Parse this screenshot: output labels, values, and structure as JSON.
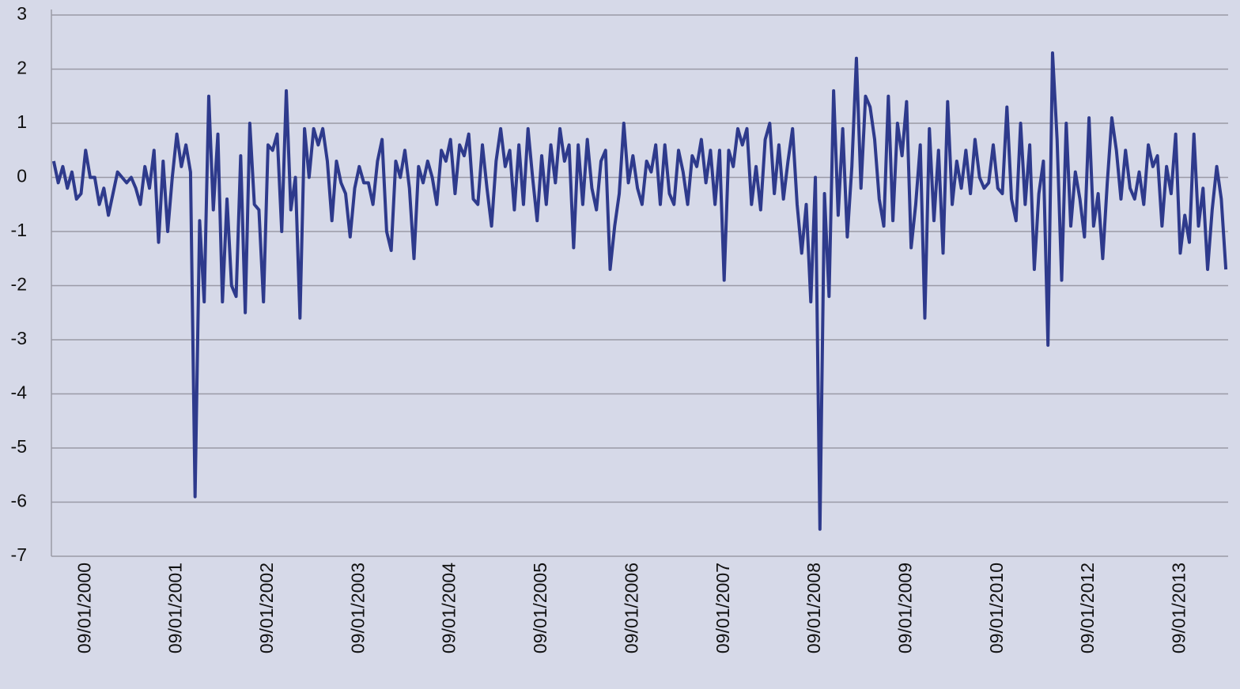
{
  "chart_data": {
    "type": "line",
    "categories": [
      null,
      null,
      null,
      null,
      null,
      null,
      null,
      "09/01/2000",
      null,
      null,
      null,
      null,
      null,
      null,
      null,
      null,
      null,
      null,
      null,
      null,
      null,
      null,
      null,
      null,
      null,
      null,
      null,
      "09/01/2001",
      null,
      null,
      null,
      null,
      null,
      null,
      null,
      null,
      null,
      null,
      null,
      null,
      null,
      null,
      null,
      null,
      null,
      null,
      null,
      "09/01/2002",
      null,
      null,
      null,
      null,
      null,
      null,
      null,
      null,
      null,
      null,
      null,
      null,
      null,
      null,
      null,
      null,
      null,
      null,
      null,
      "09/01/2003",
      null,
      null,
      null,
      null,
      null,
      null,
      null,
      null,
      null,
      null,
      null,
      null,
      null,
      null,
      null,
      null,
      null,
      null,
      null,
      "09/01/2004",
      null,
      null,
      null,
      null,
      null,
      null,
      null,
      null,
      null,
      null,
      null,
      null,
      null,
      null,
      null,
      null,
      null,
      null,
      null,
      "09/01/2005",
      null,
      null,
      null,
      null,
      null,
      null,
      null,
      null,
      null,
      null,
      null,
      null,
      null,
      null,
      null,
      null,
      null,
      null,
      null,
      "09/01/2006",
      null,
      null,
      null,
      null,
      null,
      null,
      null,
      null,
      null,
      null,
      null,
      null,
      null,
      null,
      null,
      null,
      null,
      null,
      null,
      "09/01/2007",
      null,
      null,
      null,
      null,
      null,
      null,
      null,
      null,
      null,
      null,
      null,
      null,
      null,
      null,
      null,
      null,
      null,
      null,
      null,
      "09/01/2008",
      null,
      null,
      null,
      null,
      null,
      null,
      null,
      null,
      null,
      null,
      null,
      null,
      null,
      null,
      null,
      null,
      null,
      null,
      null,
      "09/01/2009",
      null,
      null,
      null,
      null,
      null,
      null,
      null,
      null,
      null,
      null,
      null,
      null,
      null,
      null,
      null,
      null,
      null,
      null,
      null,
      "09/01/2010",
      null,
      null,
      null,
      null,
      null,
      null,
      null,
      null,
      null,
      null,
      null,
      null,
      null,
      null,
      null,
      null,
      null,
      null,
      null,
      "09/01/2012",
      null,
      null,
      null,
      null,
      null,
      null,
      null,
      null,
      null,
      null,
      null,
      null,
      null,
      null,
      null,
      null,
      null,
      null,
      null,
      "09/01/2013",
      null,
      null,
      null,
      null,
      null,
      null,
      null,
      null,
      null,
      null
    ],
    "series": [
      {
        "color": "#2e3a8c",
        "values": [
          0.3,
          -0.1,
          0.2,
          -0.2,
          0.1,
          -0.4,
          -0.3,
          0.5,
          0.0,
          0.0,
          -0.5,
          -0.2,
          -0.7,
          -0.3,
          0.1,
          0.0,
          -0.1,
          0.0,
          -0.2,
          -0.5,
          0.2,
          -0.2,
          0.5,
          -1.2,
          0.3,
          -1.0,
          0.0,
          0.8,
          0.2,
          0.6,
          0.1,
          -5.9,
          -0.8,
          -2.3,
          1.5,
          -0.6,
          0.8,
          -2.3,
          -0.4,
          -2.0,
          -2.2,
          0.4,
          -2.5,
          1.0,
          -0.5,
          -0.6,
          -2.3,
          0.6,
          0.5,
          0.8,
          -1.0,
          1.6,
          -0.6,
          0.0,
          -2.6,
          0.9,
          0.0,
          0.9,
          0.6,
          0.9,
          0.3,
          -0.8,
          0.3,
          -0.1,
          -0.3,
          -1.1,
          -0.2,
          0.2,
          -0.1,
          -0.1,
          -0.5,
          0.3,
          0.7,
          -1.0,
          -1.35,
          0.3,
          0.0,
          0.5,
          -0.2,
          -1.5,
          0.2,
          -0.1,
          0.3,
          0.0,
          -0.5,
          0.5,
          0.3,
          0.7,
          -0.3,
          0.6,
          0.4,
          0.8,
          -0.4,
          -0.5,
          0.6,
          -0.2,
          -0.9,
          0.3,
          0.9,
          0.2,
          0.5,
          -0.6,
          0.6,
          -0.5,
          0.9,
          0.0,
          -0.8,
          0.4,
          -0.5,
          0.6,
          -0.1,
          0.9,
          0.3,
          0.6,
          -1.3,
          0.6,
          -0.5,
          0.7,
          -0.2,
          -0.6,
          0.3,
          0.5,
          -1.7,
          -0.9,
          -0.3,
          1.0,
          -0.1,
          0.4,
          -0.2,
          -0.5,
          0.3,
          0.1,
          0.6,
          -0.5,
          0.6,
          -0.3,
          -0.5,
          0.5,
          0.1,
          -0.5,
          0.4,
          0.2,
          0.7,
          -0.1,
          0.5,
          -0.5,
          0.5,
          -1.9,
          0.5,
          0.2,
          0.9,
          0.6,
          0.9,
          -0.5,
          0.2,
          -0.6,
          0.7,
          1.0,
          -0.3,
          0.6,
          -0.4,
          0.3,
          0.9,
          -0.5,
          -1.4,
          -0.5,
          -2.3,
          0.0,
          -6.5,
          -0.3,
          -2.2,
          1.6,
          -0.7,
          0.9,
          -1.1,
          0.2,
          2.2,
          -0.2,
          1.5,
          1.3,
          0.7,
          -0.4,
          -0.9,
          1.5,
          -0.8,
          1.0,
          0.4,
          1.4,
          -1.3,
          -0.5,
          0.6,
          -2.6,
          0.9,
          -0.8,
          0.5,
          -1.4,
          1.4,
          -0.5,
          0.3,
          -0.2,
          0.5,
          -0.3,
          0.7,
          0.0,
          -0.2,
          -0.1,
          0.6,
          -0.2,
          -0.3,
          1.3,
          -0.4,
          -0.8,
          1.0,
          -0.5,
          0.6,
          -1.7,
          -0.3,
          0.3,
          -3.1,
          2.3,
          0.7,
          -1.9,
          1.0,
          -0.9,
          0.1,
          -0.4,
          -1.1,
          1.1,
          -0.9,
          -0.3,
          -1.5,
          -0.1,
          1.1,
          0.5,
          -0.4,
          0.5,
          -0.2,
          -0.4,
          0.1,
          -0.5,
          0.6,
          0.2,
          0.4,
          -0.9,
          0.2,
          -0.3,
          0.8,
          -1.4,
          -0.7,
          -1.2,
          0.8,
          -0.9,
          -0.2,
          -1.7,
          -0.6,
          0.2,
          -0.4,
          -1.7
        ]
      }
    ],
    "ylim": [
      -7,
      3
    ],
    "yticks": [
      -7,
      -6,
      -5,
      -4,
      -3,
      -2,
      -1,
      0,
      1,
      2,
      3
    ],
    "grid": true
  }
}
